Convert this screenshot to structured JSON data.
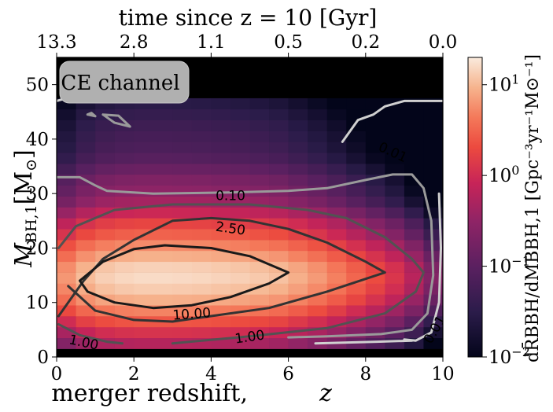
{
  "chart_data": {
    "type": "heatmap",
    "title": "",
    "xlabel": "merger redshift,",
    "xlabel_symbol": "z",
    "ylabel_symbol": "M",
    "ylabel_subscript": "BH,1",
    "ylabel_unit": "[M",
    "ylabel_unit_sub": "⊙",
    "ylabel_unit_close": "]",
    "top_xlabel": "time since z = 10 [Gyr]",
    "colorbar_label": "dR̄BBH/dMBBH,1 [Gpc⁻³yr⁻¹M⊙⁻¹]",
    "xlim": [
      0,
      10
    ],
    "ylim": [
      0,
      55
    ],
    "x_ticks": [
      0,
      2,
      4,
      6,
      8,
      10
    ],
    "y_ticks": [
      0,
      10,
      20,
      30,
      40,
      50
    ],
    "top_ticks": [
      {
        "x": 0.0,
        "label": "13.3"
      },
      {
        "x": 2.0,
        "label": "2.8"
      },
      {
        "x": 4.0,
        "label": "1.1"
      },
      {
        "x": 6.0,
        "label": "0.5"
      },
      {
        "x": 8.0,
        "label": "0.2"
      },
      {
        "x": 10.0,
        "label": "0.0"
      }
    ],
    "colorbar": {
      "scale": "log",
      "range": [
        0.01,
        20
      ],
      "ticks": [
        {
          "value": 0.01,
          "base": "10",
          "exp": "−2"
        },
        {
          "value": 0.1,
          "base": "10",
          "exp": "−1"
        },
        {
          "value": 1,
          "base": "10",
          "exp": "0"
        },
        {
          "value": 10,
          "base": "10",
          "exp": "1"
        }
      ]
    },
    "annotation": "CE channel",
    "row_profile": [
      {
        "y": 2.5,
        "value": 0.6
      },
      {
        "y": 4.5,
        "value": 1.2
      },
      {
        "y": 6.5,
        "value": 2.5
      },
      {
        "y": 8.5,
        "value": 5.0
      },
      {
        "y": 10.5,
        "value": 9.0
      },
      {
        "y": 12.5,
        "value": 13.0
      },
      {
        "y": 14.5,
        "value": 16.0
      },
      {
        "y": 16.5,
        "value": 14.0
      },
      {
        "y": 18.5,
        "value": 9.0
      },
      {
        "y": 20.5,
        "value": 5.5
      },
      {
        "y": 22.5,
        "value": 3.0
      },
      {
        "y": 24.5,
        "value": 1.8
      },
      {
        "y": 26.5,
        "value": 0.9
      },
      {
        "y": 28.5,
        "value": 0.45
      },
      {
        "y": 30.5,
        "value": 0.3
      },
      {
        "y": 32.5,
        "value": 0.22
      },
      {
        "y": 34.5,
        "value": 0.14
      },
      {
        "y": 36.5,
        "value": 0.09
      },
      {
        "y": 38.5,
        "value": 0.07
      },
      {
        "y": 40.5,
        "value": 0.06
      },
      {
        "y": 42.5,
        "value": 0.05
      },
      {
        "y": 44.5,
        "value": 0.04
      },
      {
        "y": 46.5,
        "value": 0.03
      }
    ],
    "z_profile": [
      {
        "z": 0.25,
        "factor": 0.4
      },
      {
        "z": 0.75,
        "factor": 0.65
      },
      {
        "z": 1.25,
        "factor": 0.85
      },
      {
        "z": 1.75,
        "factor": 0.95
      },
      {
        "z": 2.25,
        "factor": 1.0
      },
      {
        "z": 2.75,
        "factor": 1.0
      },
      {
        "z": 3.25,
        "factor": 0.98
      },
      {
        "z": 3.75,
        "factor": 0.95
      },
      {
        "z": 4.25,
        "factor": 0.9
      },
      {
        "z": 4.75,
        "factor": 0.85
      },
      {
        "z": 5.25,
        "factor": 0.78
      },
      {
        "z": 5.75,
        "factor": 0.7
      },
      {
        "z": 6.25,
        "factor": 0.55
      },
      {
        "z": 6.75,
        "factor": 0.42
      },
      {
        "z": 7.25,
        "factor": 0.3
      },
      {
        "z": 7.75,
        "factor": 0.2
      },
      {
        "z": 8.25,
        "factor": 0.13
      },
      {
        "z": 8.75,
        "factor": 0.08
      },
      {
        "z": 9.25,
        "factor": 0.04
      },
      {
        "z": 9.75,
        "factor": 0.015
      }
    ],
    "contours": [
      {
        "level": "0.01",
        "color": "#d0d0d0",
        "width": 3,
        "points": [
          [
            0,
            47
          ],
          [
            0.5,
            48
          ],
          [
            0.8,
            48.5
          ]
        ]
      },
      {
        "level": "0.01",
        "color": "#d0d0d0",
        "width": 3,
        "points": [
          [
            7.4,
            39.5
          ],
          [
            7.8,
            43.5
          ],
          [
            8.2,
            44.5
          ],
          [
            8.5,
            46
          ],
          [
            9.0,
            47
          ],
          [
            9.8,
            47
          ],
          [
            10,
            47
          ]
        ]
      },
      {
        "level": "0.01",
        "color": "#d0d0d0",
        "width": 3,
        "points": [
          [
            9.9,
            30
          ],
          [
            9.95,
            20
          ],
          [
            9.9,
            10
          ],
          [
            9.7,
            4.5
          ],
          [
            9.3,
            3
          ],
          [
            9.0,
            3.2
          ]
        ]
      },
      {
        "level": "0.01",
        "color": "#d0d0d0",
        "width": 3,
        "points": [
          [
            6.7,
            2.5
          ],
          [
            8.3,
            2.8
          ],
          [
            9.2,
            3.0
          ]
        ]
      },
      {
        "level": "0.10",
        "color": "#9a9a9a",
        "width": 3,
        "points": [
          [
            0,
            33
          ],
          [
            0.6,
            33
          ],
          [
            1.0,
            31.5
          ],
          [
            1.3,
            30.5
          ],
          [
            2.5,
            30
          ],
          [
            4.5,
            30.2
          ],
          [
            6.0,
            30.5
          ],
          [
            7.0,
            31
          ],
          [
            8.0,
            32.5
          ],
          [
            8.7,
            33.5
          ],
          [
            9.2,
            33.5
          ],
          [
            9.5,
            31
          ],
          [
            9.7,
            25
          ],
          [
            9.75,
            15
          ],
          [
            9.6,
            8
          ],
          [
            9.2,
            5
          ],
          [
            8.4,
            4.2
          ],
          [
            7.0,
            3.8
          ],
          [
            6.0,
            3.6
          ]
        ]
      },
      {
        "level": "0.10",
        "color": "#9a9a9a",
        "width": 3,
        "points": [
          [
            1.2,
            44.5
          ],
          [
            1.5,
            43
          ],
          [
            1.9,
            42.3
          ],
          [
            1.6,
            44.3
          ],
          [
            1.2,
            44.5
          ]
        ]
      },
      {
        "level": "0.10",
        "color": "#9a9a9a",
        "width": 3,
        "points": [
          [
            0.8,
            44.5
          ],
          [
            1.0,
            44.2
          ],
          [
            0.9,
            44.8
          ],
          [
            0.8,
            44.5
          ]
        ]
      },
      {
        "level": "1.00",
        "color": "#525252",
        "width": 3,
        "points": [
          [
            0.05,
            20
          ],
          [
            0.5,
            24
          ],
          [
            1.5,
            27
          ],
          [
            3,
            28
          ],
          [
            5,
            28
          ],
          [
            6.5,
            27
          ],
          [
            7.5,
            25.5
          ],
          [
            8.5,
            22
          ],
          [
            9.2,
            18
          ],
          [
            9.5,
            15.5
          ],
          [
            9.3,
            12
          ],
          [
            8.5,
            8
          ],
          [
            7.0,
            5.3
          ],
          [
            5.0,
            3.8
          ],
          [
            3.0,
            2.5
          ]
        ]
      },
      {
        "level": "1.00",
        "color": "#525252",
        "width": 3,
        "points": [
          [
            0.05,
            6
          ],
          [
            0.6,
            4
          ],
          [
            1.3,
            2.8
          ],
          [
            1.7,
            2.5
          ]
        ]
      },
      {
        "level": "2.50",
        "color": "#333333",
        "width": 3,
        "points": [
          [
            0.05,
            7.5
          ],
          [
            0.3,
            10
          ],
          [
            0.7,
            14
          ],
          [
            1.2,
            18
          ],
          [
            2.0,
            21.5
          ],
          [
            3.0,
            25
          ],
          [
            4.0,
            25.5
          ],
          [
            5.0,
            25
          ],
          [
            6.0,
            23.5
          ],
          [
            7.0,
            21
          ],
          [
            8.0,
            17.5
          ],
          [
            8.5,
            15.5
          ],
          [
            7.0,
            12
          ],
          [
            5.5,
            9
          ],
          [
            4.0,
            7.5
          ],
          [
            3.0,
            6.5
          ],
          [
            2.0,
            6.8
          ],
          [
            1.0,
            8.5
          ],
          [
            0.3,
            13
          ]
        ]
      },
      {
        "level": "10.00",
        "color": "#1a1a1a",
        "width": 3,
        "points": [
          [
            0.6,
            14
          ],
          [
            1.2,
            17.5
          ],
          [
            2.0,
            19.8
          ],
          [
            2.8,
            20.5
          ],
          [
            4.0,
            20
          ],
          [
            5.0,
            18.5
          ],
          [
            6.0,
            15.5
          ],
          [
            5.5,
            13.5
          ],
          [
            4.5,
            11
          ],
          [
            3.5,
            9.5
          ],
          [
            2.5,
            9.0
          ],
          [
            1.5,
            10
          ],
          [
            0.8,
            12
          ],
          [
            0.6,
            14
          ]
        ]
      }
    ],
    "contour_labels": [
      {
        "text": "0.01",
        "x": 8.7,
        "y": 37.5,
        "angle": 25,
        "color": "#d0d0d0"
      },
      {
        "text": "0.01",
        "x": 9.8,
        "y": 5.0,
        "angle": -60,
        "color": "#d0d0d0"
      },
      {
        "text": "0.10",
        "x": 4.5,
        "y": 29.5,
        "angle": 0,
        "color": "#9a9a9a"
      },
      {
        "text": "2.50",
        "x": 4.5,
        "y": 23.5,
        "angle": 8,
        "color": "#333333"
      },
      {
        "text": "10.00",
        "x": 3.5,
        "y": 7.8,
        "angle": -4,
        "color": "#1a1a1a"
      },
      {
        "text": "1.00",
        "x": 0.7,
        "y": 2.6,
        "angle": 12,
        "color": "#525252"
      },
      {
        "text": "1.00",
        "x": 5.0,
        "y": 3.6,
        "angle": -8,
        "color": "#525252"
      }
    ]
  }
}
